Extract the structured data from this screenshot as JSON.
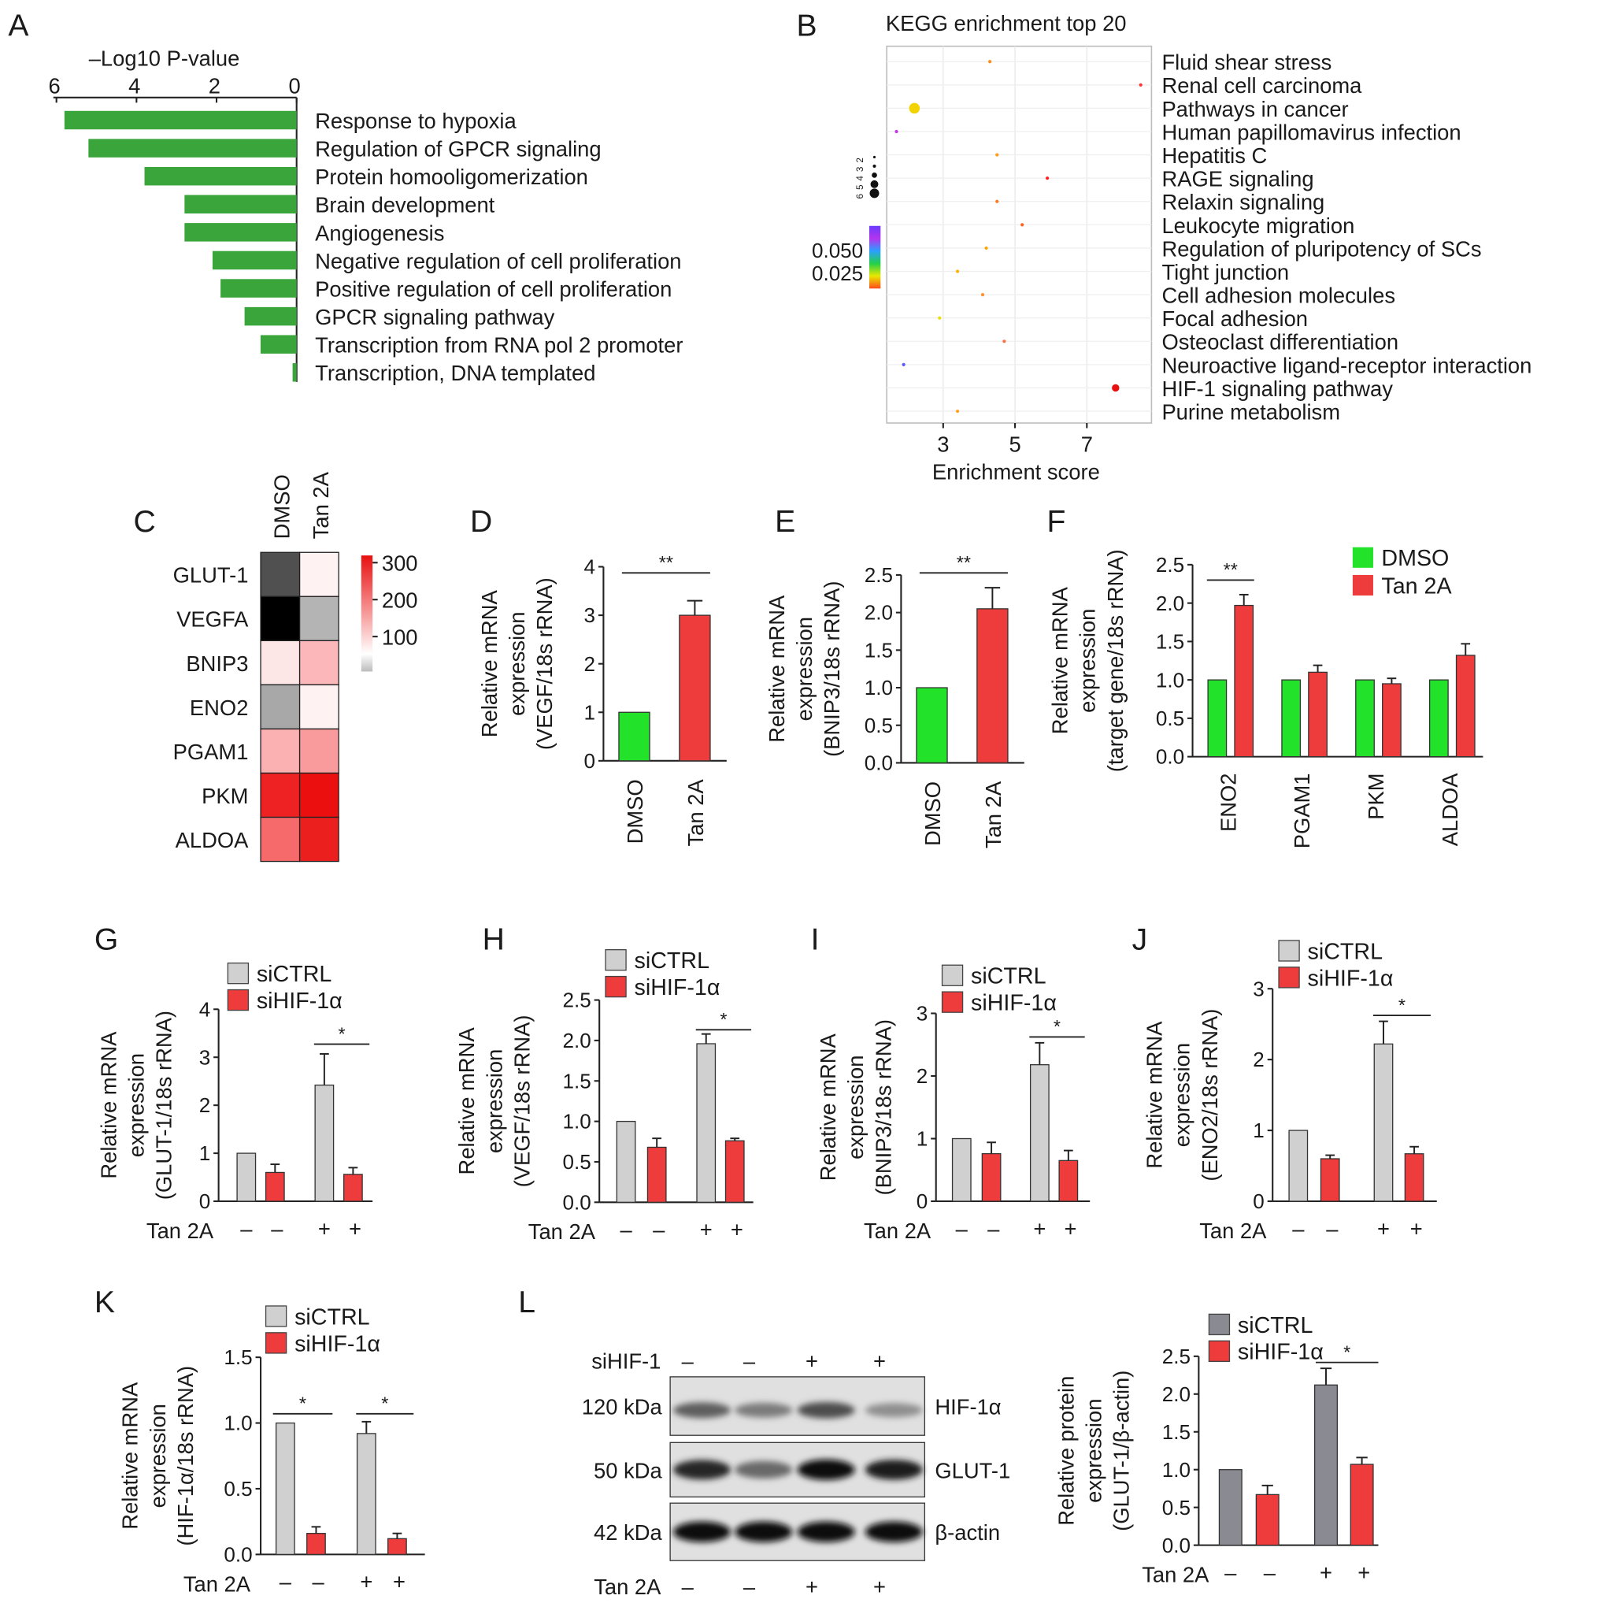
{
  "colors": {
    "green": "#3aa53a",
    "lime": "#22e22a",
    "red": "#ee3b3b",
    "grey": "#d0d0d0",
    "darkgrey": "#8a8a92",
    "axis": "#222222"
  },
  "panelA": {
    "letter": "A",
    "axis_label": "–Log10 P-value",
    "ticks": [
      "6",
      "4",
      "2",
      "0"
    ],
    "items": [
      {
        "label": "Response to hypoxia",
        "value": 5.8
      },
      {
        "label": "Regulation of GPCR signaling",
        "value": 5.2
      },
      {
        "label": "Protein homooligomerization",
        "value": 3.8
      },
      {
        "label": "Brain development",
        "value": 2.8
      },
      {
        "label": "Angiogenesis",
        "value": 2.8
      },
      {
        "label": "Negative regulation of cell proliferation",
        "value": 2.1
      },
      {
        "label": "Positive regulation of cell proliferation",
        "value": 1.9
      },
      {
        "label": "GPCR signaling pathway",
        "value": 1.3
      },
      {
        "label": "Transcription from RNA pol 2 promoter",
        "value": 0.9
      },
      {
        "label": "Transcription, DNA templated",
        "value": 0.1
      }
    ]
  },
  "panelB": {
    "letter": "B",
    "title": "KEGG enrichment top 20",
    "xlabel": "Enrichment score",
    "xticks": [
      "3",
      "5",
      "7"
    ],
    "size_legend": [
      "2",
      "3",
      "4",
      "5",
      "6"
    ],
    "color_legend": [
      "0.050",
      "0.025"
    ],
    "points": [
      {
        "label": "Fluid shear stress",
        "x": 4.3,
        "size": 1,
        "color": "#ff8c1a"
      },
      {
        "label": "Renal cell carcinoma",
        "x": 8.5,
        "size": 1,
        "color": "#ff3030"
      },
      {
        "label": "Pathways in cancer",
        "x": 2.2,
        "size": 5,
        "color": "#f2d200"
      },
      {
        "label": "Human papillomavirus infection",
        "x": 1.7,
        "size": 1,
        "color": "#cc33ee"
      },
      {
        "label": "Hepatitis C",
        "x": 4.5,
        "size": 1,
        "color": "#ff9a1a"
      },
      {
        "label": "RAGE signaling",
        "x": 5.9,
        "size": 1,
        "color": "#ff2020"
      },
      {
        "label": "Relaxin signaling",
        "x": 4.5,
        "size": 1,
        "color": "#ff7a20"
      },
      {
        "label": "Leukocyte migration",
        "x": 5.2,
        "size": 1,
        "color": "#ff6020"
      },
      {
        "label": "Regulation of pluripotency of SCs",
        "x": 4.2,
        "size": 1,
        "color": "#ffa500"
      },
      {
        "label": "Tight junction",
        "x": 3.4,
        "size": 1,
        "color": "#ffb000"
      },
      {
        "label": "Cell adhesion molecules",
        "x": 4.1,
        "size": 1,
        "color": "#ff9030"
      },
      {
        "label": "Focal adhesion",
        "x": 2.9,
        "size": 1,
        "color": "#e8e000"
      },
      {
        "label": "Osteoclast differentiation",
        "x": 4.7,
        "size": 1,
        "color": "#ff7040"
      },
      {
        "label": "Neuroactive ligand-receptor interaction",
        "x": 1.9,
        "size": 1,
        "color": "#5a5aff"
      },
      {
        "label": "HIF-1 signaling pathway",
        "x": 7.8,
        "size": 3,
        "color": "#e81010"
      },
      {
        "label": "Purine metabolism",
        "x": 3.4,
        "size": 1,
        "color": "#ffa020"
      }
    ]
  },
  "panelC": {
    "letter": "C",
    "cols": [
      "DMSO",
      "Tan 2A"
    ],
    "rows": [
      "GLUT-1",
      "VEGFA",
      "BNIP3",
      "ENO2",
      "PGAM1",
      "PKM",
      "ALDOA"
    ],
    "cells": [
      [
        "#505050",
        "#fff2f2"
      ],
      [
        "#000000",
        "#b4b4b4"
      ],
      [
        "#fde6e6",
        "#fbb7b9"
      ],
      [
        "#a8a8a8",
        "#fff2f2"
      ],
      [
        "#fbb0b2",
        "#f99a9c"
      ],
      [
        "#ee2222",
        "#ec0f0f"
      ],
      [
        "#f76a6c",
        "#ec1f1f"
      ]
    ],
    "scale": [
      "300",
      "200",
      "100"
    ]
  },
  "panelD": {
    "letter": "D",
    "ylabel": [
      "Relative mRNA",
      "expression",
      "(VEGF/18s rRNA)"
    ],
    "yticks": [
      "0",
      "1",
      "2",
      "3",
      "4"
    ],
    "ymax": 4,
    "bars": [
      {
        "label": "DMSO",
        "value": 1.0,
        "err": 0
      },
      {
        "label": "Tan 2A",
        "value": 3.0,
        "err": 0.3
      }
    ],
    "sig": "**"
  },
  "panelE": {
    "letter": "E",
    "ylabel": [
      "Relative mRNA",
      "expression",
      "(BNIP3/18s rRNA)"
    ],
    "yticks": [
      "0.0",
      "0.5",
      "1.0",
      "1.5",
      "2.0",
      "2.5"
    ],
    "ymax": 2.5,
    "bars": [
      {
        "label": "DMSO",
        "value": 1.0,
        "err": 0
      },
      {
        "label": "Tan 2A",
        "value": 2.05,
        "err": 0.28
      }
    ],
    "sig": "**"
  },
  "panelF": {
    "letter": "F",
    "ylabel": [
      "Relative mRNA",
      "expression",
      "(target gene/18s rRNA)"
    ],
    "yticks": [
      "0.0",
      "0.5",
      "1.0",
      "1.5",
      "2.0",
      "2.5"
    ],
    "ymax": 2.5,
    "legend": [
      "DMSO",
      "Tan 2A"
    ],
    "groups": [
      {
        "label": "ENO2",
        "dmso": 1.0,
        "tan": 1.97,
        "err": 0.14
      },
      {
        "label": "PGAM1",
        "dmso": 1.0,
        "tan": 1.1,
        "err": 0.09
      },
      {
        "label": "PKM",
        "dmso": 1.0,
        "tan": 0.95,
        "err": 0.07
      },
      {
        "label": "ALDOA",
        "dmso": 1.0,
        "tan": 1.32,
        "err": 0.15
      }
    ],
    "sig": "**"
  },
  "panelG": {
    "letter": "G",
    "legend": [
      "siCTRL",
      "siHIF-1α"
    ],
    "ylabel": [
      "Relative mRNA",
      "expression",
      "(GLUT-1/18s rRNA)"
    ],
    "yticks": [
      "0",
      "1",
      "2",
      "3",
      "4"
    ],
    "ymax": 4,
    "values": [
      1.0,
      0.6,
      2.42,
      0.56
    ],
    "errs": [
      0,
      0.17,
      0.65,
      0.14
    ],
    "signs": [
      "–",
      "–",
      "+",
      "+"
    ],
    "tan_label": "Tan 2A",
    "sig": "*"
  },
  "panelH": {
    "letter": "H",
    "legend": [
      "siCTRL",
      "siHIF-1α"
    ],
    "ylabel": [
      "Relative mRNA",
      "expression",
      "(VEGF/18s rRNA)"
    ],
    "yticks": [
      "0.0",
      "0.5",
      "1.0",
      "1.5",
      "2.0",
      "2.5"
    ],
    "ymax": 2.5,
    "values": [
      1.0,
      0.68,
      1.96,
      0.76
    ],
    "errs": [
      0,
      0.11,
      0.12,
      0.03
    ],
    "signs": [
      "–",
      "–",
      "+",
      "+"
    ],
    "tan_label": "Tan 2A",
    "sig": "*"
  },
  "panelI": {
    "letter": "I",
    "legend": [
      "siCTRL",
      "siHIF-1α"
    ],
    "ylabel": [
      "Relative mRNA",
      "expression",
      "(BNIP3/18s rRNA)"
    ],
    "yticks": [
      "0",
      "1",
      "2",
      "3"
    ],
    "ymax": 3,
    "values": [
      1.0,
      0.76,
      2.18,
      0.65
    ],
    "errs": [
      0,
      0.18,
      0.35,
      0.16
    ],
    "signs": [
      "–",
      "–",
      "+",
      "+"
    ],
    "tan_label": "Tan 2A",
    "sig": "*"
  },
  "panelJ": {
    "letter": "J",
    "legend": [
      "siCTRL",
      "siHIF-1α"
    ],
    "ylabel": [
      "Relative mRNA",
      "expression",
      "(ENO2/18s rRNA)"
    ],
    "yticks": [
      "0",
      "1",
      "2",
      "3"
    ],
    "ymax": 3,
    "values": [
      1.0,
      0.6,
      2.22,
      0.67
    ],
    "errs": [
      0,
      0.05,
      0.32,
      0.1
    ],
    "signs": [
      "–",
      "–",
      "+",
      "+"
    ],
    "tan_label": "Tan 2A",
    "sig": "*"
  },
  "panelK": {
    "letter": "K",
    "legend": [
      "siCTRL",
      "siHIF-1α"
    ],
    "ylabel": [
      "Relative mRNA",
      "expression",
      "(HIF-1α/18s rRNA)"
    ],
    "yticks": [
      "0.0",
      "0.5",
      "1.0",
      "1.5"
    ],
    "ymax": 1.5,
    "values": [
      1.0,
      0.16,
      0.92,
      0.12
    ],
    "errs": [
      0,
      0.05,
      0.09,
      0.04
    ],
    "signs": [
      "–",
      "–",
      "+",
      "+"
    ],
    "tan_label": "Tan 2A",
    "sig": "*"
  },
  "panelL": {
    "letter": "L",
    "blot_top_label": "siHIF-1",
    "top_signs": [
      "–",
      "–",
      "+",
      "+"
    ],
    "bottom_label": "Tan 2A",
    "bottom_signs": [
      "–",
      "–",
      "+",
      "+"
    ],
    "bands": [
      {
        "kda": "120 kDa",
        "name": "HIF-1α",
        "intensity": [
          0.55,
          0.4,
          0.65,
          0.3
        ]
      },
      {
        "kda": "50 kDa",
        "name": "GLUT-1",
        "intensity": [
          0.85,
          0.5,
          1.0,
          0.9
        ]
      },
      {
        "kda": "42 kDa",
        "name": "β-actin",
        "intensity": [
          1.0,
          1.0,
          1.0,
          1.0
        ]
      }
    ],
    "chart": {
      "legend": [
        "siCTRL",
        "siHIF-1α"
      ],
      "ylabel": [
        "Relative protein",
        "expression",
        "(GLUT-1/β-actin)"
      ],
      "yticks": [
        "0.0",
        "0.5",
        "1.0",
        "1.5",
        "2.0",
        "2.5"
      ],
      "ymax": 2.5,
      "values": [
        1.0,
        0.67,
        2.12,
        1.07
      ],
      "errs": [
        0,
        0.12,
        0.22,
        0.09
      ],
      "signs": [
        "–",
        "–",
        "+",
        "+"
      ],
      "tan_label": "Tan 2A",
      "sig": "*"
    }
  },
  "chart_data": [
    {
      "type": "bar",
      "title": "",
      "xlabel": "–Log10 P-value",
      "categories": [
        "Response to hypoxia",
        "Regulation of GPCR signaling",
        "Protein homooligomerization",
        "Brain development",
        "Angiogenesis",
        "Negative regulation of cell proliferation",
        "Positive regulation of cell proliferation",
        "GPCR signaling pathway",
        "Transcription from RNA pol 2 promoter",
        "Transcription, DNA templated"
      ],
      "values": [
        5.8,
        5.2,
        3.8,
        2.8,
        2.8,
        2.1,
        1.9,
        1.3,
        0.9,
        0.1
      ],
      "xlim": [
        6,
        0
      ]
    },
    {
      "type": "scatter",
      "title": "KEGG enrichment top 20",
      "xlabel": "Enrichment score",
      "x": [
        4.3,
        8.5,
        2.2,
        1.7,
        4.5,
        5.9,
        4.5,
        5.2,
        4.2,
        3.4,
        4.1,
        2.9,
        4.7,
        1.9,
        7.8,
        3.4
      ],
      "categories": [
        "Fluid shear stress",
        "Renal cell carcinoma",
        "Pathways in cancer",
        "Human papillomavirus infection",
        "Hepatitis C",
        "RAGE signaling",
        "Relaxin signaling",
        "Leukocyte migration",
        "Regulation of pluripotency of SCs",
        "Tight junction",
        "Cell adhesion molecules",
        "Focal adhesion",
        "Osteoclast differentiation",
        "Neuroactive ligand-receptor interaction",
        "HIF-1 signaling pathway",
        "Purine metabolism"
      ]
    },
    {
      "type": "heatmap",
      "categories": [
        "GLUT-1",
        "VEGFA",
        "BNIP3",
        "ENO2",
        "PGAM1",
        "PKM",
        "ALDOA"
      ],
      "columns": [
        "DMSO",
        "Tan 2A"
      ]
    },
    {
      "type": "bar",
      "categories": [
        "DMSO",
        "Tan 2A"
      ],
      "values": [
        1.0,
        3.0
      ],
      "ylim": [
        0,
        4
      ]
    },
    {
      "type": "bar",
      "categories": [
        "DMSO",
        "Tan 2A"
      ],
      "values": [
        1.0,
        2.05
      ],
      "ylim": [
        0,
        2.5
      ]
    },
    {
      "type": "bar",
      "categories": [
        "ENO2",
        "PGAM1",
        "PKM",
        "ALDOA"
      ],
      "series": [
        {
          "name": "DMSO",
          "values": [
            1.0,
            1.0,
            1.0,
            1.0
          ]
        },
        {
          "name": "Tan 2A",
          "values": [
            1.97,
            1.1,
            0.95,
            1.32
          ]
        }
      ],
      "ylim": [
        0,
        2.5
      ]
    },
    {
      "type": "bar",
      "series": [
        {
          "name": "siCTRL",
          "values": [
            1.0,
            2.42
          ]
        },
        {
          "name": "siHIF-1α",
          "values": [
            0.6,
            0.56
          ]
        }
      ],
      "ylim": [
        0,
        4
      ]
    },
    {
      "type": "bar",
      "series": [
        {
          "name": "siCTRL",
          "values": [
            1.0,
            1.96
          ]
        },
        {
          "name": "siHIF-1α",
          "values": [
            0.68,
            0.76
          ]
        }
      ],
      "ylim": [
        0,
        2.5
      ]
    },
    {
      "type": "bar",
      "series": [
        {
          "name": "siCTRL",
          "values": [
            1.0,
            2.18
          ]
        },
        {
          "name": "siHIF-1α",
          "values": [
            0.76,
            0.65
          ]
        }
      ],
      "ylim": [
        0,
        3
      ]
    },
    {
      "type": "bar",
      "series": [
        {
          "name": "siCTRL",
          "values": [
            1.0,
            2.22
          ]
        },
        {
          "name": "siHIF-1α",
          "values": [
            0.6,
            0.67
          ]
        }
      ],
      "ylim": [
        0,
        3
      ]
    },
    {
      "type": "bar",
      "series": [
        {
          "name": "siCTRL",
          "values": [
            1.0,
            0.92
          ]
        },
        {
          "name": "siHIF-1α",
          "values": [
            0.16,
            0.12
          ]
        }
      ],
      "ylim": [
        0,
        1.5
      ]
    },
    {
      "type": "bar",
      "series": [
        {
          "name": "siCTRL",
          "values": [
            1.0,
            2.12
          ]
        },
        {
          "name": "siHIF-1α",
          "values": [
            0.67,
            1.07
          ]
        }
      ],
      "ylim": [
        0,
        2.5
      ]
    }
  ]
}
